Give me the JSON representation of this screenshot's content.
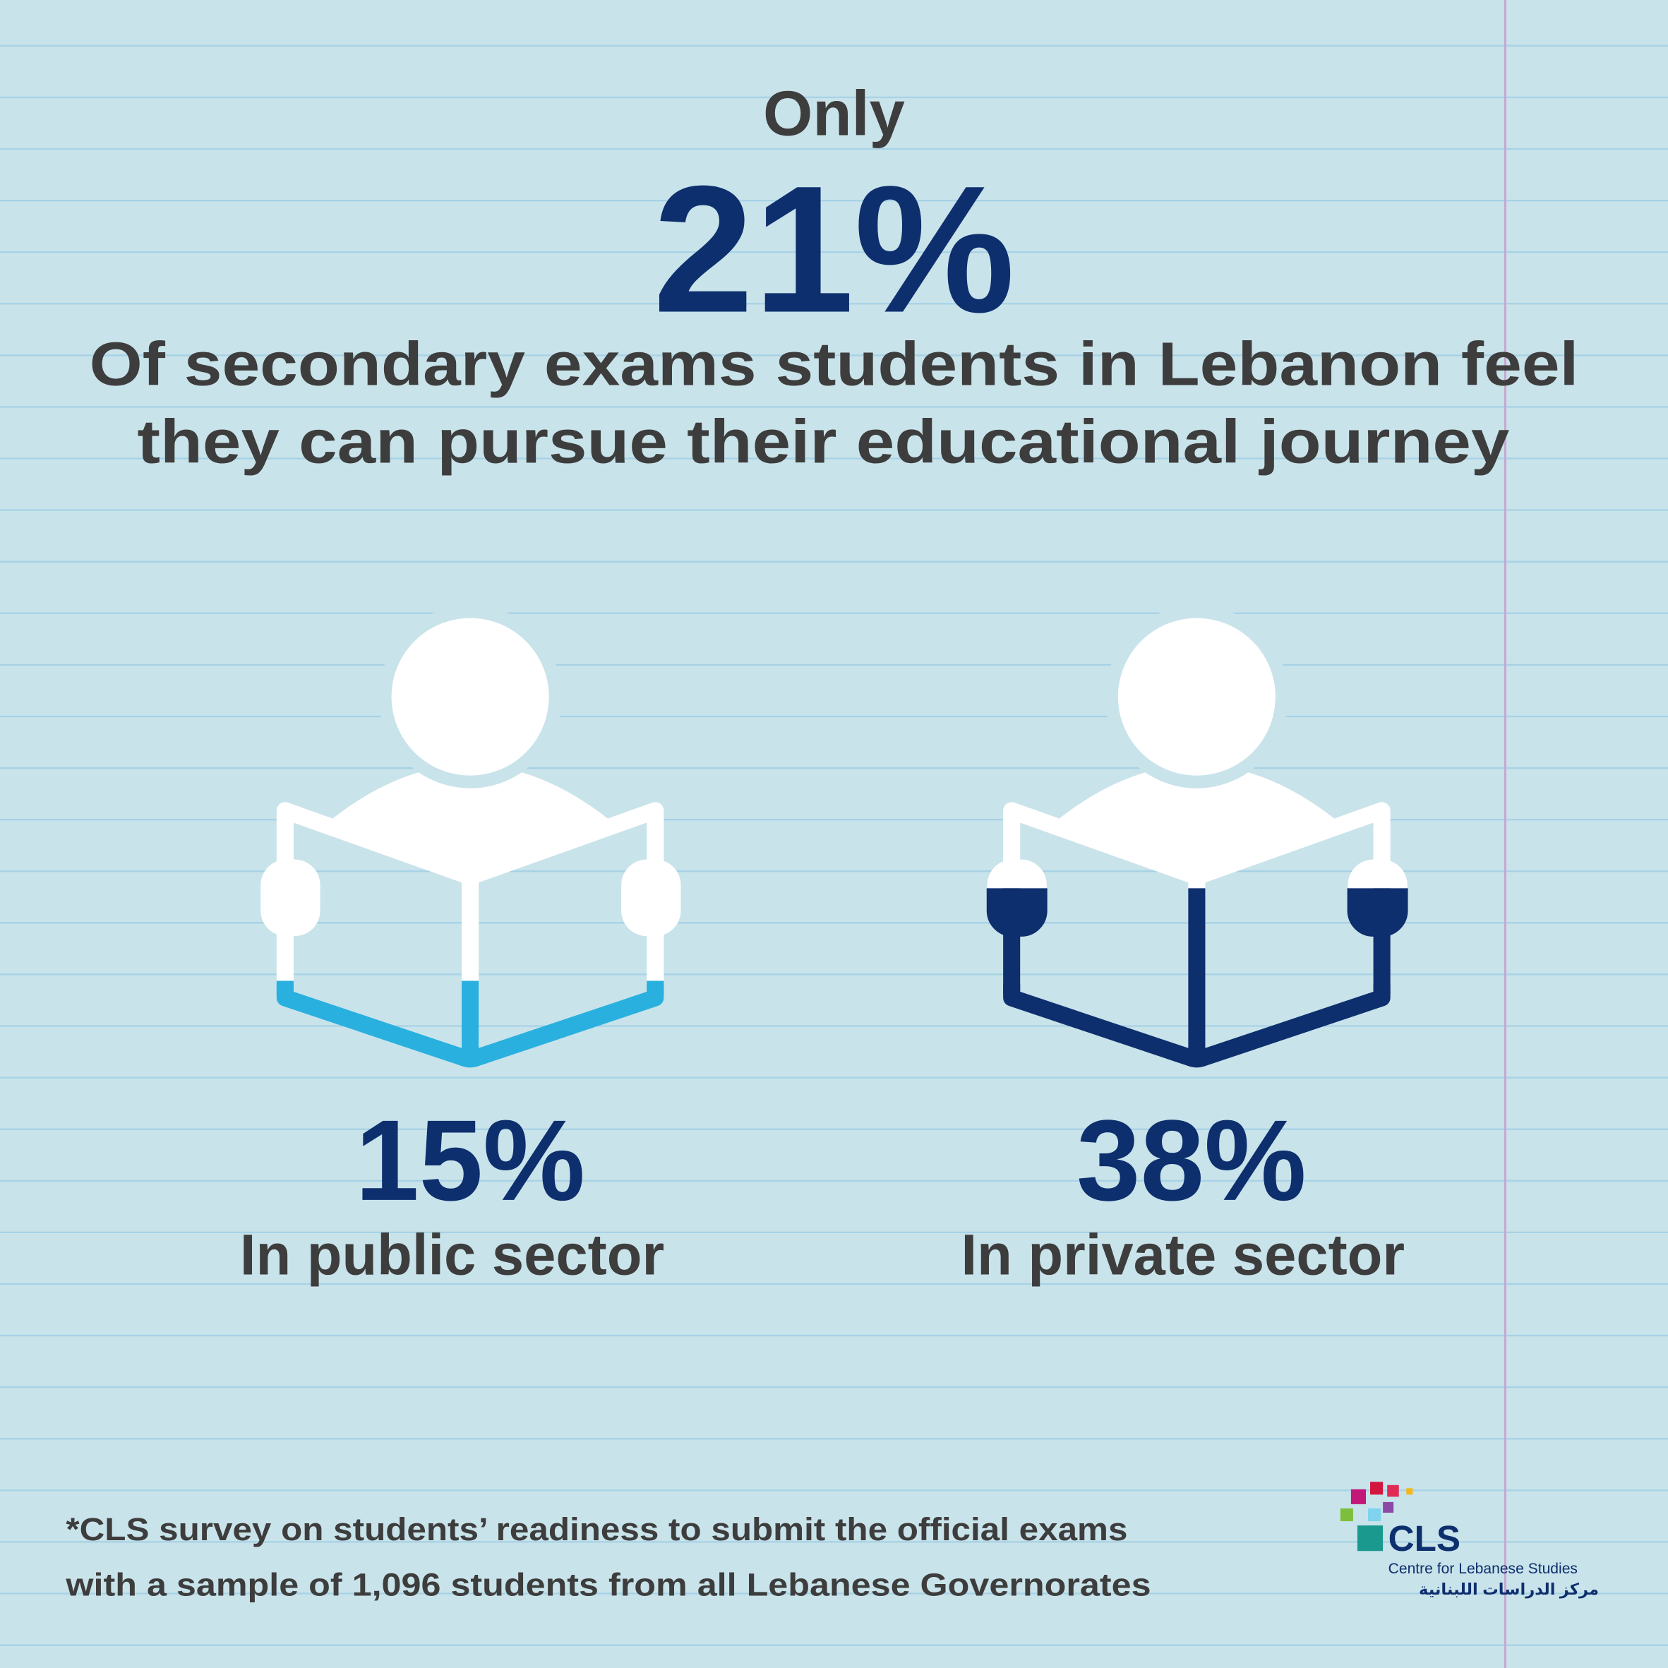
{
  "header": {
    "lead": "Only",
    "headline": "21%",
    "subtitle": [
      "Of secondary exams students in Lebanon feel",
      "they can pursue their educational journey"
    ]
  },
  "stats": [
    {
      "value": "15%",
      "label": "In public sector"
    },
    {
      "value": "38%",
      "label": "In private sector"
    }
  ],
  "footnote": [
    "*CLS survey on students’ readiness to submit the official exams",
    "with a sample of 1,096 students from all Lebanese Governorates"
  ],
  "logo": {
    "acronym": "CLS",
    "name": "Centre for Lebanese Studies",
    "name_arabic": "مركز الدراسات اللبنانية"
  }
}
